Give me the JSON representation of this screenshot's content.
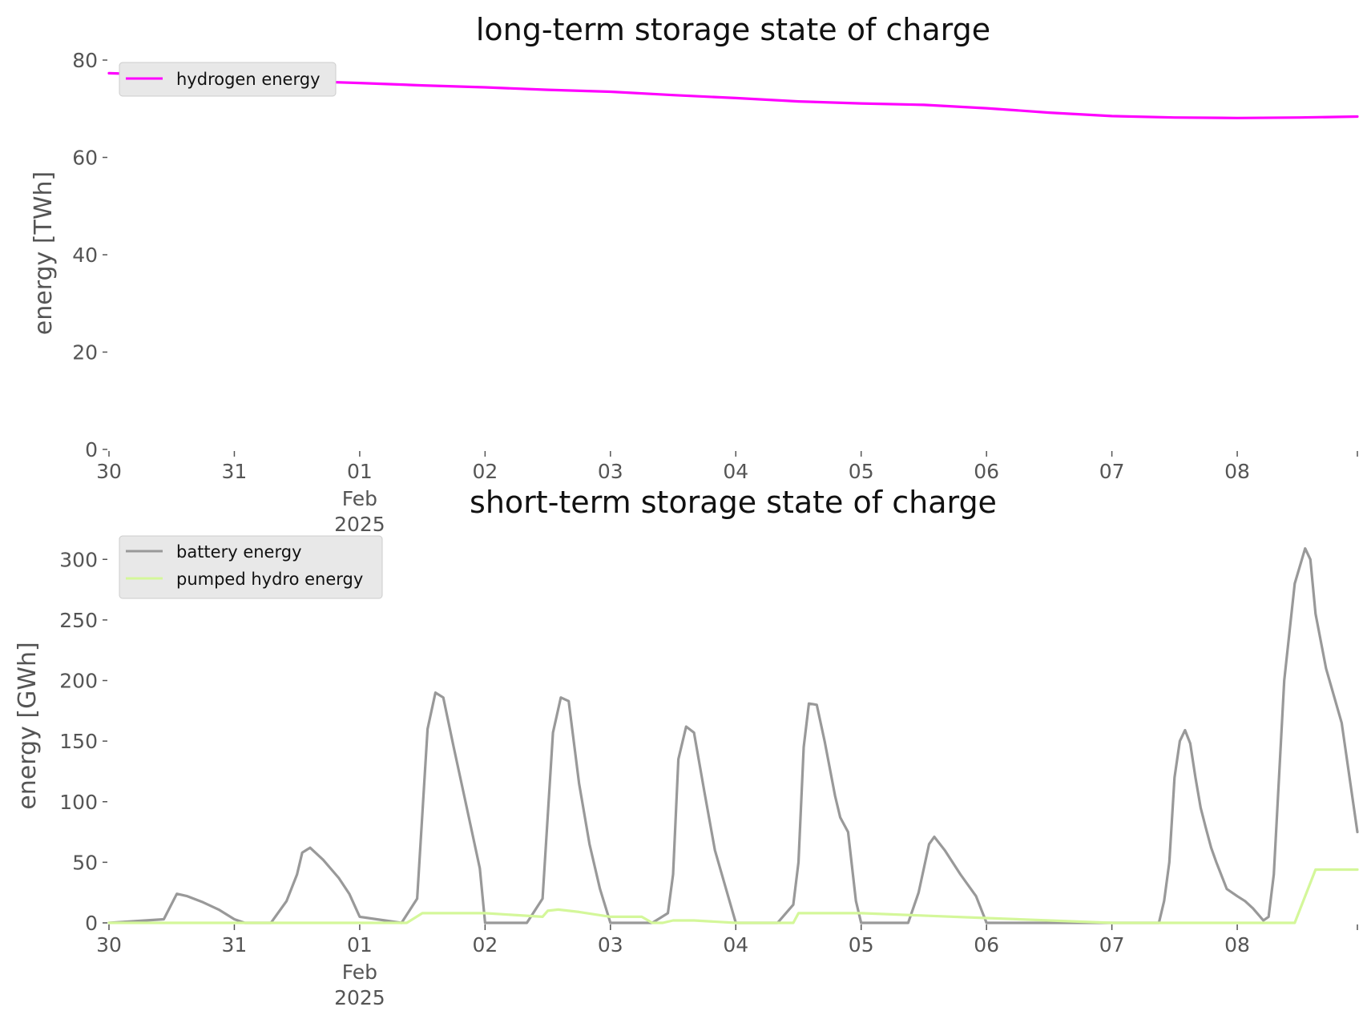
{
  "chart_data": [
    {
      "type": "line",
      "title": "long-term storage state of charge",
      "xlabel": "",
      "ylabel": "energy [TWh]",
      "xlim": [
        "2025-01-30T00:00",
        "2025-02-08T23:00"
      ],
      "ylim": [
        0,
        80
      ],
      "yticks": [
        "0",
        "20",
        "40",
        "60",
        "80"
      ],
      "xticks": [
        {
          "date": "2025-01-30",
          "label": "30"
        },
        {
          "date": "2025-01-31",
          "label": "31"
        },
        {
          "date": "2025-02-01",
          "label": "01",
          "sub1": "Feb",
          "sub2": "2025"
        },
        {
          "date": "2025-02-02",
          "label": "02"
        },
        {
          "date": "2025-02-03",
          "label": "03"
        },
        {
          "date": "2025-02-04",
          "label": "04"
        },
        {
          "date": "2025-02-05",
          "label": "05"
        },
        {
          "date": "2025-02-06",
          "label": "06"
        },
        {
          "date": "2025-02-07",
          "label": "07"
        },
        {
          "date": "2025-02-08",
          "label": "08"
        }
      ],
      "grid": false,
      "legend_position": "upper-left",
      "series": [
        {
          "name": "hydrogen energy",
          "color": "#ff00ff",
          "x": [
            "2025-01-30T00:00",
            "2025-01-30T12:00",
            "2025-01-31T00:00",
            "2025-01-31T12:00",
            "2025-02-01T00:00",
            "2025-02-01T12:00",
            "2025-02-02T00:00",
            "2025-02-02T12:00",
            "2025-02-03T00:00",
            "2025-02-03T12:00",
            "2025-02-04T00:00",
            "2025-02-04T12:00",
            "2025-02-05T00:00",
            "2025-02-05T12:00",
            "2025-02-06T00:00",
            "2025-02-06T12:00",
            "2025-02-07T00:00",
            "2025-02-07T12:00",
            "2025-02-08T00:00",
            "2025-02-08T12:00",
            "2025-02-08T23:00"
          ],
          "y": [
            77.3,
            76.9,
            76.3,
            75.7,
            75.3,
            74.8,
            74.4,
            73.9,
            73.5,
            72.8,
            72.2,
            71.5,
            71.1,
            70.8,
            70.1,
            69.2,
            68.5,
            68.2,
            68.1,
            68.2,
            68.4
          ]
        }
      ]
    },
    {
      "type": "line",
      "title": "short-term storage state of charge",
      "xlabel": "",
      "ylabel": "energy [GWh]",
      "xlim": [
        "2025-01-30T00:00",
        "2025-02-08T23:00"
      ],
      "ylim": [
        0,
        320
      ],
      "yticks": [
        "0",
        "50",
        "100",
        "150",
        "200",
        "250",
        "300"
      ],
      "xticks": [
        {
          "date": "2025-01-30",
          "label": "30"
        },
        {
          "date": "2025-01-31",
          "label": "31"
        },
        {
          "date": "2025-02-01",
          "label": "01",
          "sub1": "Feb",
          "sub2": "2025"
        },
        {
          "date": "2025-02-02",
          "label": "02"
        },
        {
          "date": "2025-02-03",
          "label": "03"
        },
        {
          "date": "2025-02-04",
          "label": "04"
        },
        {
          "date": "2025-02-05",
          "label": "05"
        },
        {
          "date": "2025-02-06",
          "label": "06"
        },
        {
          "date": "2025-02-07",
          "label": "07"
        },
        {
          "date": "2025-02-08",
          "label": "08"
        }
      ],
      "grid": false,
      "legend_position": "upper-left",
      "series": [
        {
          "name": "battery energy",
          "color": "#999999",
          "x": [
            "2025-01-30T00:00",
            "2025-01-30T10:30",
            "2025-01-30T13:00",
            "2025-01-30T15:00",
            "2025-01-30T18:00",
            "2025-01-30T21:00",
            "2025-01-31T00:00",
            "2025-01-31T02:00",
            "2025-01-31T07:00",
            "2025-01-31T10:00",
            "2025-01-31T12:00",
            "2025-01-31T13:00",
            "2025-01-31T14:30",
            "2025-01-31T17:00",
            "2025-01-31T20:00",
            "2025-01-31T22:00",
            "2025-02-01T00:00",
            "2025-02-01T08:00",
            "2025-02-01T11:00",
            "2025-02-01T13:00",
            "2025-02-01T14:30",
            "2025-02-01T16:00",
            "2025-02-01T18:00",
            "2025-02-01T20:00",
            "2025-02-01T22:00",
            "2025-02-01T23:00",
            "2025-02-02T00:00",
            "2025-02-02T08:00",
            "2025-02-02T11:00",
            "2025-02-02T13:00",
            "2025-02-02T14:30",
            "2025-02-02T16:00",
            "2025-02-02T18:00",
            "2025-02-02T20:00",
            "2025-02-02T22:00",
            "2025-02-03T00:00",
            "2025-02-03T08:00",
            "2025-02-03T11:00",
            "2025-02-03T12:00",
            "2025-02-03T13:00",
            "2025-02-03T14:30",
            "2025-02-03T16:00",
            "2025-02-03T18:00",
            "2025-02-03T20:00",
            "2025-02-03T22:00",
            "2025-02-04T00:00",
            "2025-02-04T08:00",
            "2025-02-04T11:00",
            "2025-02-04T12:00",
            "2025-02-04T13:00",
            "2025-02-04T14:00",
            "2025-02-04T15:30",
            "2025-02-04T17:00",
            "2025-02-04T19:00",
            "2025-02-04T20:00",
            "2025-02-04T21:30",
            "2025-02-04T23:00",
            "2025-02-05T00:00",
            "2025-02-05T09:00",
            "2025-02-05T11:00",
            "2025-02-05T13:00",
            "2025-02-05T14:00",
            "2025-02-05T16:00",
            "2025-02-05T19:00",
            "2025-02-05T22:00",
            "2025-02-06T00:00",
            "2025-02-07T09:00",
            "2025-02-07T10:00",
            "2025-02-07T11:00",
            "2025-02-07T12:00",
            "2025-02-07T13:00",
            "2025-02-07T14:00",
            "2025-02-07T15:00",
            "2025-02-07T16:00",
            "2025-02-07T17:00",
            "2025-02-07T18:00",
            "2025-02-07T19:00",
            "2025-02-07T20:00",
            "2025-02-07T22:00",
            "2025-02-08T00:00",
            "2025-02-08T01:30",
            "2025-02-08T03:00",
            "2025-02-08T05:00",
            "2025-02-08T06:00",
            "2025-02-08T07:00",
            "2025-02-08T08:00",
            "2025-02-08T09:00",
            "2025-02-08T11:00",
            "2025-02-08T13:00",
            "2025-02-08T14:00",
            "2025-02-08T15:00",
            "2025-02-08T17:00",
            "2025-02-08T20:00",
            "2025-02-08T23:00"
          ],
          "y": [
            0,
            3,
            24,
            22,
            17,
            11,
            3,
            0,
            0,
            18,
            40,
            58,
            62,
            52,
            37,
            24,
            5,
            0,
            20,
            160,
            190,
            186,
            145,
            105,
            65,
            45,
            0,
            0,
            20,
            157,
            186,
            183,
            115,
            65,
            28,
            0,
            0,
            8,
            40,
            135,
            162,
            157,
            108,
            60,
            30,
            0,
            0,
            15,
            50,
            145,
            181,
            180,
            150,
            105,
            87,
            75,
            18,
            0,
            0,
            25,
            65,
            71,
            60,
            40,
            22,
            0,
            0,
            18,
            50,
            120,
            150,
            159,
            148,
            120,
            95,
            78,
            62,
            50,
            28,
            22,
            18,
            12,
            2,
            5,
            40,
            120,
            200,
            280,
            309,
            300,
            255,
            210,
            165,
            75
          ]
        },
        {
          "name": "pumped hydro energy",
          "color": "#d4f79a",
          "x": [
            "2025-01-30T00:00",
            "2025-02-01T09:00",
            "2025-02-01T12:00",
            "2025-02-02T00:00",
            "2025-02-02T11:00",
            "2025-02-02T12:00",
            "2025-02-02T14:00",
            "2025-02-02T18:00",
            "2025-02-03T00:00",
            "2025-02-03T06:00",
            "2025-02-03T08:00",
            "2025-02-03T10:00",
            "2025-02-03T12:00",
            "2025-02-03T16:00",
            "2025-02-04T00:00",
            "2025-02-04T11:00",
            "2025-02-04T12:00",
            "2025-02-05T00:00",
            "2025-02-06T00:00",
            "2025-02-07T00:00",
            "2025-02-08T11:00",
            "2025-02-08T15:00",
            "2025-02-08T23:00"
          ],
          "y": [
            0,
            0,
            8,
            8,
            5,
            10,
            11,
            9,
            5,
            5,
            0,
            0,
            2,
            2,
            0,
            0,
            8,
            8,
            4,
            0,
            0,
            44,
            44
          ]
        }
      ]
    }
  ]
}
